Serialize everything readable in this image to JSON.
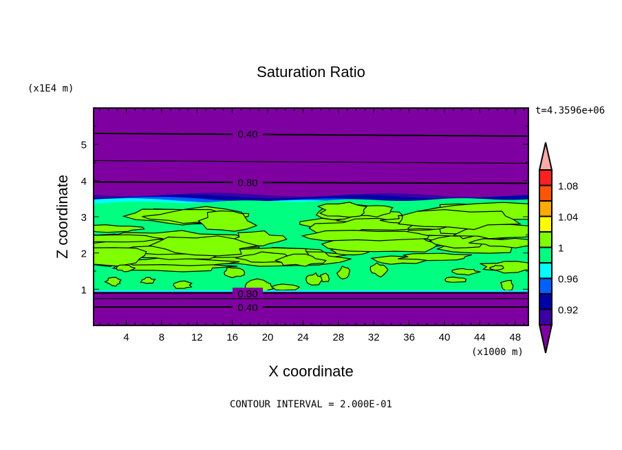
{
  "chart_data": {
    "type": "heatmap",
    "subtype": "filled-contour",
    "title": "Saturation Ratio",
    "xlabel": "X coordinate",
    "ylabel": "Z coordinate",
    "x_unit": "(x1000 m)",
    "y_unit": "(x1E4 m)",
    "time_label": "t=4.3596e+06",
    "footer": "CONTOUR INTERVAL = 2.000E-01",
    "xlim": [
      0.3,
      49.5
    ],
    "ylim": [
      0,
      6
    ],
    "x_ticks": [
      4,
      8,
      12,
      16,
      20,
      24,
      28,
      32,
      36,
      40,
      44,
      48
    ],
    "y_ticks": [
      1,
      2,
      3,
      4,
      5
    ],
    "colorbar": {
      "levels": [
        0.9,
        0.92,
        0.94,
        0.96,
        0.98,
        1.0,
        1.02,
        1.04,
        1.06,
        1.08,
        1.1
      ],
      "tick_labels": [
        {
          "value": 0.92,
          "label": "0.92"
        },
        {
          "value": 0.96,
          "label": "0.96"
        },
        {
          "value": 1.0,
          "label": "1"
        },
        {
          "value": 1.04,
          "label": "1.04"
        },
        {
          "value": 1.08,
          "label": "1.08"
        }
      ],
      "colors": [
        "#3a00a5",
        "#0000a8",
        "#0060ff",
        "#00ffff",
        "#00ff80",
        "#80ff00",
        "#ffff00",
        "#ffaa00",
        "#ff5500",
        "#ff2020"
      ],
      "under_color": "#7f00a0",
      "over_color": "#ffaaaa"
    },
    "contour_lines": [
      {
        "z": 5.3,
        "value": 0.4,
        "label": "0.40"
      },
      {
        "z": 4.55,
        "value": 0.6,
        "label": ""
      },
      {
        "z": 3.96,
        "value": 0.8,
        "label": "0.80"
      },
      {
        "z": 0.89,
        "value": 0.8,
        "label": "0.80"
      },
      {
        "z": 0.74,
        "value": 0.6,
        "label": ""
      },
      {
        "z": 0.51,
        "value": 0.4,
        "label": "0.40"
      }
    ],
    "layers": [
      {
        "z_from": 0.95,
        "z_to": 3.4,
        "description_value": "0.98-1.02 (mostly 0.98-1.00 with 1.00-1.02 patches)"
      },
      {
        "z_from": 3.4,
        "z_to": 3.6,
        "description_value": "0.90-0.98 (cloud-top transition)"
      }
    ]
  }
}
